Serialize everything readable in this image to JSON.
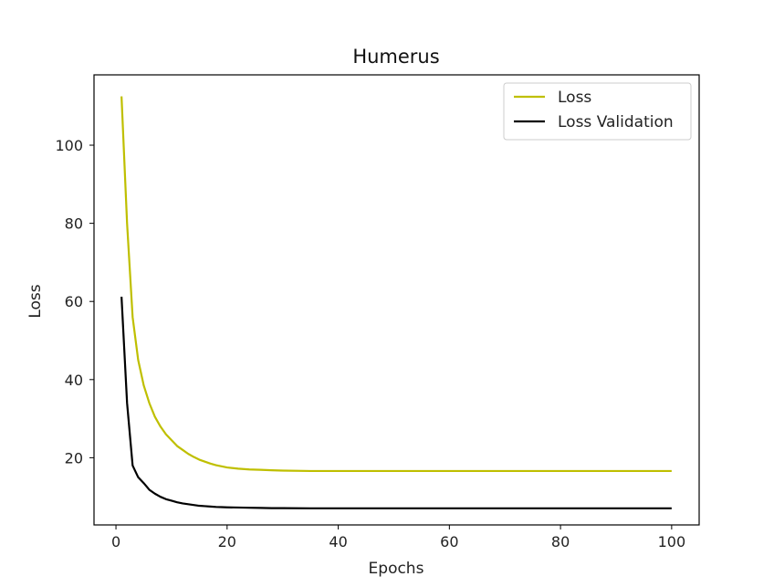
{
  "chart_data": {
    "type": "line",
    "title": "Humerus",
    "xlabel": "Epochs",
    "ylabel": "Loss",
    "xlim": [
      -3.95,
      104.95
    ],
    "ylim": [
      2.8,
      118
    ],
    "xticks": [
      0,
      20,
      40,
      60,
      80,
      100
    ],
    "yticks": [
      20,
      40,
      60,
      80,
      100
    ],
    "grid": false,
    "legend_position": "top-right",
    "x": [
      1,
      2,
      3,
      4,
      5,
      6,
      7,
      8,
      9,
      10,
      11,
      12,
      13,
      14,
      15,
      16,
      17,
      18,
      19,
      20,
      22,
      24,
      26,
      28,
      30,
      35,
      40,
      45,
      50,
      60,
      70,
      80,
      90,
      100
    ],
    "series": [
      {
        "name": "Loss",
        "color": "#bfbf00",
        "values": [
          112.5,
          80,
          56,
          45,
          38.5,
          34,
          30.5,
          28,
          26,
          24.5,
          23,
          22,
          21,
          20.2,
          19.5,
          19,
          18.5,
          18.1,
          17.8,
          17.5,
          17.2,
          17,
          16.9,
          16.8,
          16.7,
          16.6,
          16.6,
          16.6,
          16.6,
          16.6,
          16.6,
          16.6,
          16.6,
          16.6
        ]
      },
      {
        "name": "Loss Validation",
        "color": "#000000",
        "values": [
          61.2,
          34,
          18,
          15,
          13.5,
          11.8,
          10.8,
          10,
          9.4,
          9,
          8.6,
          8.3,
          8.1,
          7.9,
          7.7,
          7.6,
          7.5,
          7.4,
          7.35,
          7.3,
          7.25,
          7.2,
          7.15,
          7.1,
          7.1,
          7.05,
          7.05,
          7.05,
          7.05,
          7.05,
          7.05,
          7.05,
          7.05,
          7.05
        ]
      }
    ]
  }
}
